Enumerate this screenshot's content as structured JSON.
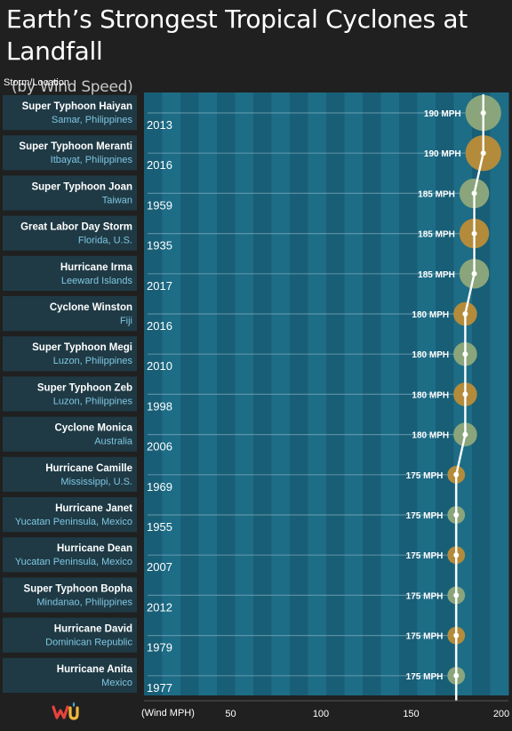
{
  "title": "Earth’s Strongest Tropical Cyclones at Landfall",
  "subtitle": "(by Wind Speed)",
  "column_header": "Storm/Location",
  "colors": {
    "background": "#202020",
    "row_panel": "#1f3a45",
    "stripe_dark": "#185e76",
    "stripe_light": "#1e6d87",
    "bubble_gold": "#b38b3a",
    "bubble_green": "#8aa57b",
    "trend_line": "#ffffff",
    "location_text": "#7fc7e3"
  },
  "logo": {
    "icon": "wu-logo-icon"
  },
  "chart_data": {
    "type": "scatter",
    "title": "Earth’s Strongest Tropical Cyclones at Landfall",
    "subtitle": "(by Wind Speed)",
    "xlabel": "(Wind MPH)",
    "ylabel": "Storm/Location",
    "xlim": [
      0,
      200
    ],
    "xticks": [
      50,
      100,
      150,
      200
    ],
    "value_unit": "MPH",
    "rows": [
      {
        "name": "Super Typhoon Haiyan",
        "location": "Samar, Philippines",
        "year": "2013",
        "value": 190,
        "label": "190 MPH"
      },
      {
        "name": "Super Typhoon Meranti",
        "location": "Itbayat, Philippines",
        "year": "2016",
        "value": 190,
        "label": "190 MPH"
      },
      {
        "name": "Super Typhoon Joan",
        "location": "Taiwan",
        "year": "1959",
        "value": 185,
        "label": "185 MPH"
      },
      {
        "name": "Great Labor Day Storm",
        "location": "Florida, U.S.",
        "year": "1935",
        "value": 185,
        "label": "185 MPH"
      },
      {
        "name": "Hurricane Irma",
        "location": "Leeward Islands",
        "year": "2017",
        "value": 185,
        "label": "185 MPH"
      },
      {
        "name": "Cyclone Winston",
        "location": "Fiji",
        "year": "2016",
        "value": 180,
        "label": "180 MPH"
      },
      {
        "name": "Super Typhoon Megi",
        "location": "Luzon, Philippines",
        "year": "2010",
        "value": 180,
        "label": "180 MPH"
      },
      {
        "name": "Super Typhoon Zeb",
        "location": "Luzon, Philippines",
        "year": "1998",
        "value": 180,
        "label": "180 MPH"
      },
      {
        "name": "Cyclone Monica",
        "location": "Australia",
        "year": "2006",
        "value": 180,
        "label": "180 MPH"
      },
      {
        "name": "Hurricane Camille",
        "location": "Mississippi, U.S.",
        "year": "1969",
        "value": 175,
        "label": "175 MPH"
      },
      {
        "name": "Hurricane Janet",
        "location": "Yucatan Peninsula, Mexico",
        "year": "1955",
        "value": 175,
        "label": "175 MPH"
      },
      {
        "name": "Hurricane Dean",
        "location": "Yucatan Peninsula, Mexico",
        "year": "2007",
        "value": 175,
        "label": "175 MPH"
      },
      {
        "name": "Super Typhoon Bopha",
        "location": "Mindanao, Philippines",
        "year": "2012",
        "value": 175,
        "label": "175 MPH"
      },
      {
        "name": "Hurricane David",
        "location": "Dominican Republic",
        "year": "1979",
        "value": 175,
        "label": "175 MPH"
      },
      {
        "name": "Hurricane Anita",
        "location": "Mexico",
        "year": "1977",
        "value": 175,
        "label": "175 MPH"
      }
    ]
  }
}
